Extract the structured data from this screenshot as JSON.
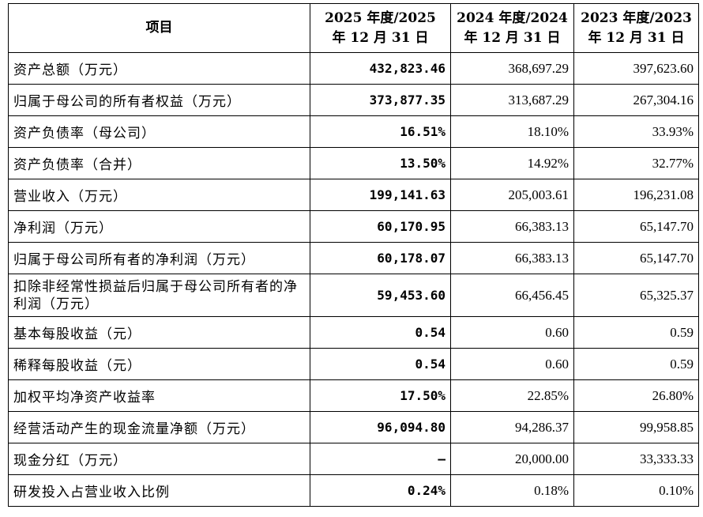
{
  "table": {
    "headers": [
      {
        "lines": [
          "项目"
        ]
      },
      {
        "lines": [
          "2025 年度/2025",
          "年 12 月 31 日"
        ]
      },
      {
        "lines": [
          "2024 年度/2024",
          "年 12 月 31 日"
        ]
      },
      {
        "lines": [
          "2023 年度/2023",
          "年 12 月 31 日"
        ]
      }
    ],
    "rows": [
      {
        "label": "资产总额（万元）",
        "v2025": "432,823.46",
        "v2024": "368,697.29",
        "v2023": "397,623.60"
      },
      {
        "label": "归属于母公司的所有者权益（万元）",
        "v2025": "373,877.35",
        "v2024": "313,687.29",
        "v2023": "267,304.16"
      },
      {
        "label": "资产负债率（母公司）",
        "v2025": "16.51%",
        "v2024": "18.10%",
        "v2023": "33.93%"
      },
      {
        "label": "资产负债率（合并）",
        "v2025": "13.50%",
        "v2024": "14.92%",
        "v2023": "32.77%"
      },
      {
        "label": "营业收入（万元）",
        "v2025": "199,141.63",
        "v2024": "205,003.61",
        "v2023": "196,231.08"
      },
      {
        "label": "净利润（万元）",
        "v2025": "60,170.95",
        "v2024": "66,383.13",
        "v2023": "65,147.70"
      },
      {
        "label": "归属于母公司所有者的净利润（万元）",
        "v2025": "60,178.07",
        "v2024": "66,383.13",
        "v2023": "65,147.70"
      },
      {
        "label": "扣除非经常性损益后归属于母公司所有者的净利润（万元）",
        "v2025": "59,453.60",
        "v2024": "66,456.45",
        "v2023": "65,325.37"
      },
      {
        "label": "基本每股收益（元）",
        "v2025": "0.54",
        "v2024": "0.60",
        "v2023": "0.59"
      },
      {
        "label": "稀释每股收益（元）",
        "v2025": "0.54",
        "v2024": "0.60",
        "v2023": "0.59"
      },
      {
        "label": "加权平均净资产收益率",
        "v2025": "17.50%",
        "v2024": "22.85%",
        "v2023": "26.80%"
      },
      {
        "label": "经营活动产生的现金流量净额（万元）",
        "v2025": "96,094.80",
        "v2024": "94,286.37",
        "v2023": "99,958.85"
      },
      {
        "label": "现金分红（万元）",
        "v2025": "–",
        "v2024": "20,000.00",
        "v2023": "33,333.33"
      },
      {
        "label": "研发投入占营业收入比例",
        "v2025": "0.24%",
        "v2024": "0.18%",
        "v2023": "0.10%"
      }
    ]
  }
}
